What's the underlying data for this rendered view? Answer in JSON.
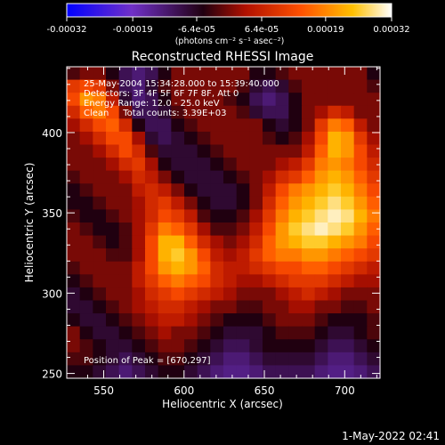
{
  "colorbar": {
    "tick_labels": [
      "-0.00032",
      "-0.00019",
      "-6.4e-05",
      "6.4e-05",
      "0.00019",
      "0.00032"
    ],
    "unit_label": "(photons cm⁻² s⁻¹ asec⁻²)",
    "range": [
      -0.00032,
      0.00032
    ]
  },
  "annotations": {
    "line1": "25-May-2004 15:34:28.000 to 15:39:40.000",
    "line2": "Detectors: 3F 4F 5F 6F 7F 8F, Att 0",
    "line3": "Energy Range: 12.0 - 25.0 keV",
    "line4": "Clean     Total counts: 3.39E+03",
    "peak": "Position of Peak = [670,297]"
  },
  "footer_date": "1-May-2022 02:41",
  "chart_data": {
    "type": "heatmap",
    "title": "Reconstructed RHESSI Image",
    "xlabel": "Heliocentric X (arcsec)",
    "ylabel": "Heliocentric Y (arcsec)",
    "xlim": [
      527,
      722
    ],
    "ylim": [
      247,
      441
    ],
    "x_ticks": [
      550,
      600,
      650,
      700
    ],
    "y_ticks": [
      250,
      300,
      350,
      400
    ],
    "x_tick_labels": [
      "550",
      "600",
      "650",
      "700"
    ],
    "y_tick_labels": [
      "250",
      "300",
      "350",
      "400"
    ],
    "colormap": [
      "#0000ff",
      "#7030c8",
      "#200010",
      "#b01000",
      "#ff5000",
      "#ffc000",
      "#ffffff"
    ],
    "grid": {
      "cols": 24,
      "rows": 24,
      "values": [
        [
          0.46,
          0.5,
          0.5,
          0.42,
          0.34,
          0.3,
          0.34,
          0.42,
          0.5,
          0.5,
          0.5,
          0.5,
          0.5,
          0.5,
          0.42,
          0.42,
          0.46,
          0.5,
          0.5,
          0.5,
          0.5,
          0.5,
          0.5,
          0.42
        ],
        [
          0.66,
          0.7,
          0.66,
          0.5,
          0.34,
          0.3,
          0.38,
          0.46,
          0.5,
          0.5,
          0.5,
          0.5,
          0.5,
          0.46,
          0.38,
          0.34,
          0.38,
          0.46,
          0.5,
          0.5,
          0.5,
          0.5,
          0.5,
          0.46
        ],
        [
          0.7,
          0.82,
          0.78,
          0.58,
          0.38,
          0.3,
          0.34,
          0.42,
          0.5,
          0.5,
          0.5,
          0.5,
          0.46,
          0.42,
          0.34,
          0.3,
          0.34,
          0.42,
          0.5,
          0.5,
          0.5,
          0.5,
          0.5,
          0.5
        ],
        [
          0.62,
          0.74,
          0.78,
          0.7,
          0.5,
          0.34,
          0.34,
          0.38,
          0.46,
          0.5,
          0.5,
          0.5,
          0.5,
          0.46,
          0.38,
          0.34,
          0.34,
          0.42,
          0.5,
          0.54,
          0.62,
          0.58,
          0.5,
          0.5
        ],
        [
          0.54,
          0.62,
          0.7,
          0.74,
          0.62,
          0.42,
          0.34,
          0.34,
          0.42,
          0.46,
          0.5,
          0.5,
          0.5,
          0.5,
          0.5,
          0.42,
          0.38,
          0.42,
          0.5,
          0.66,
          0.78,
          0.74,
          0.58,
          0.5
        ],
        [
          0.5,
          0.54,
          0.62,
          0.7,
          0.7,
          0.54,
          0.38,
          0.34,
          0.38,
          0.42,
          0.46,
          0.5,
          0.5,
          0.5,
          0.5,
          0.46,
          0.42,
          0.46,
          0.54,
          0.7,
          0.86,
          0.82,
          0.66,
          0.54
        ],
        [
          0.5,
          0.5,
          0.54,
          0.62,
          0.7,
          0.62,
          0.46,
          0.38,
          0.38,
          0.38,
          0.42,
          0.46,
          0.5,
          0.5,
          0.5,
          0.5,
          0.5,
          0.5,
          0.58,
          0.74,
          0.86,
          0.82,
          0.7,
          0.58
        ],
        [
          0.5,
          0.5,
          0.5,
          0.54,
          0.62,
          0.66,
          0.54,
          0.42,
          0.38,
          0.38,
          0.38,
          0.42,
          0.46,
          0.5,
          0.5,
          0.5,
          0.54,
          0.58,
          0.66,
          0.78,
          0.82,
          0.78,
          0.7,
          0.62
        ],
        [
          0.46,
          0.5,
          0.5,
          0.5,
          0.54,
          0.62,
          0.58,
          0.5,
          0.42,
          0.38,
          0.38,
          0.38,
          0.42,
          0.46,
          0.5,
          0.54,
          0.62,
          0.66,
          0.74,
          0.82,
          0.86,
          0.82,
          0.74,
          0.66
        ],
        [
          0.42,
          0.46,
          0.5,
          0.5,
          0.5,
          0.58,
          0.62,
          0.58,
          0.5,
          0.42,
          0.38,
          0.38,
          0.38,
          0.42,
          0.5,
          0.58,
          0.7,
          0.78,
          0.82,
          0.86,
          0.9,
          0.86,
          0.78,
          0.7
        ],
        [
          0.42,
          0.42,
          0.46,
          0.5,
          0.5,
          0.54,
          0.62,
          0.66,
          0.58,
          0.5,
          0.42,
          0.38,
          0.38,
          0.42,
          0.5,
          0.62,
          0.74,
          0.82,
          0.86,
          0.9,
          0.94,
          0.9,
          0.82,
          0.74
        ],
        [
          0.46,
          0.42,
          0.42,
          0.46,
          0.5,
          0.54,
          0.62,
          0.7,
          0.66,
          0.58,
          0.46,
          0.42,
          0.42,
          0.46,
          0.54,
          0.66,
          0.78,
          0.86,
          0.9,
          0.94,
          0.97,
          0.94,
          0.86,
          0.78
        ],
        [
          0.5,
          0.46,
          0.42,
          0.42,
          0.46,
          0.54,
          0.66,
          0.78,
          0.74,
          0.66,
          0.54,
          0.46,
          0.46,
          0.5,
          0.58,
          0.7,
          0.82,
          0.9,
          0.94,
          0.97,
          0.94,
          0.9,
          0.82,
          0.74
        ],
        [
          0.5,
          0.5,
          0.46,
          0.42,
          0.46,
          0.54,
          0.7,
          0.86,
          0.86,
          0.74,
          0.62,
          0.54,
          0.5,
          0.54,
          0.62,
          0.74,
          0.82,
          0.86,
          0.9,
          0.9,
          0.86,
          0.82,
          0.78,
          0.7
        ],
        [
          0.5,
          0.5,
          0.5,
          0.46,
          0.46,
          0.54,
          0.7,
          0.86,
          0.9,
          0.82,
          0.7,
          0.58,
          0.54,
          0.58,
          0.66,
          0.74,
          0.78,
          0.78,
          0.82,
          0.82,
          0.78,
          0.74,
          0.7,
          0.66
        ],
        [
          0.46,
          0.5,
          0.5,
          0.5,
          0.5,
          0.58,
          0.7,
          0.82,
          0.86,
          0.82,
          0.74,
          0.62,
          0.58,
          0.58,
          0.62,
          0.66,
          0.7,
          0.7,
          0.74,
          0.74,
          0.7,
          0.66,
          0.62,
          0.58
        ],
        [
          0.42,
          0.46,
          0.5,
          0.5,
          0.5,
          0.58,
          0.66,
          0.74,
          0.78,
          0.74,
          0.7,
          0.62,
          0.58,
          0.54,
          0.54,
          0.58,
          0.62,
          0.66,
          0.66,
          0.66,
          0.62,
          0.58,
          0.54,
          0.54
        ],
        [
          0.38,
          0.42,
          0.46,
          0.5,
          0.5,
          0.54,
          0.62,
          0.66,
          0.7,
          0.66,
          0.62,
          0.58,
          0.54,
          0.5,
          0.5,
          0.5,
          0.54,
          0.58,
          0.62,
          0.58,
          0.54,
          0.5,
          0.5,
          0.5
        ],
        [
          0.38,
          0.38,
          0.42,
          0.46,
          0.5,
          0.54,
          0.58,
          0.62,
          0.62,
          0.58,
          0.54,
          0.5,
          0.5,
          0.46,
          0.46,
          0.5,
          0.5,
          0.54,
          0.54,
          0.5,
          0.5,
          0.46,
          0.46,
          0.5
        ],
        [
          0.42,
          0.38,
          0.38,
          0.42,
          0.46,
          0.5,
          0.54,
          0.58,
          0.58,
          0.54,
          0.5,
          0.46,
          0.42,
          0.42,
          0.42,
          0.46,
          0.5,
          0.5,
          0.5,
          0.46,
          0.42,
          0.42,
          0.42,
          0.46
        ],
        [
          0.5,
          0.42,
          0.38,
          0.38,
          0.42,
          0.46,
          0.5,
          0.54,
          0.5,
          0.5,
          0.46,
          0.42,
          0.38,
          0.38,
          0.38,
          0.42,
          0.46,
          0.46,
          0.46,
          0.42,
          0.38,
          0.38,
          0.42,
          0.46
        ],
        [
          0.5,
          0.46,
          0.42,
          0.38,
          0.38,
          0.42,
          0.46,
          0.5,
          0.5,
          0.46,
          0.42,
          0.38,
          0.34,
          0.34,
          0.38,
          0.42,
          0.42,
          0.42,
          0.42,
          0.38,
          0.34,
          0.34,
          0.38,
          0.42
        ],
        [
          0.46,
          0.46,
          0.42,
          0.38,
          0.34,
          0.38,
          0.42,
          0.46,
          0.46,
          0.42,
          0.38,
          0.34,
          0.3,
          0.3,
          0.34,
          0.38,
          0.38,
          0.38,
          0.38,
          0.34,
          0.3,
          0.3,
          0.34,
          0.38
        ],
        [
          0.42,
          0.42,
          0.38,
          0.34,
          0.3,
          0.34,
          0.38,
          0.42,
          0.42,
          0.38,
          0.34,
          0.3,
          0.28,
          0.28,
          0.3,
          0.34,
          0.34,
          0.34,
          0.34,
          0.3,
          0.28,
          0.28,
          0.3,
          0.34
        ]
      ]
    }
  }
}
